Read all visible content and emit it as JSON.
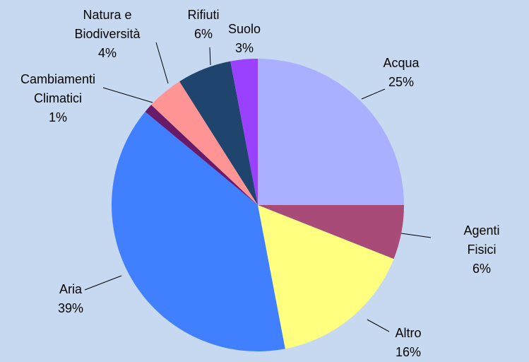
{
  "chart_data": {
    "type": "pie",
    "categories": [
      "Acqua",
      "Agenti Fisici",
      "Altro",
      "Aria",
      "Cambiamenti\nClimatici",
      "Natura e\nBiodiversità",
      "Rifiuti",
      "Suolo"
    ],
    "values": [
      25,
      6,
      16,
      39,
      1,
      4,
      6,
      3
    ],
    "value_labels": [
      "25%",
      "6%",
      "16%",
      "39%",
      "1%",
      "4%",
      "6%",
      "3%"
    ],
    "colors": [
      "#aab0ff",
      "#a84b78",
      "#ffff80",
      "#4080ff",
      "#6a1a6a",
      "#ff9494",
      "#1f456e",
      "#9a40ff"
    ]
  }
}
